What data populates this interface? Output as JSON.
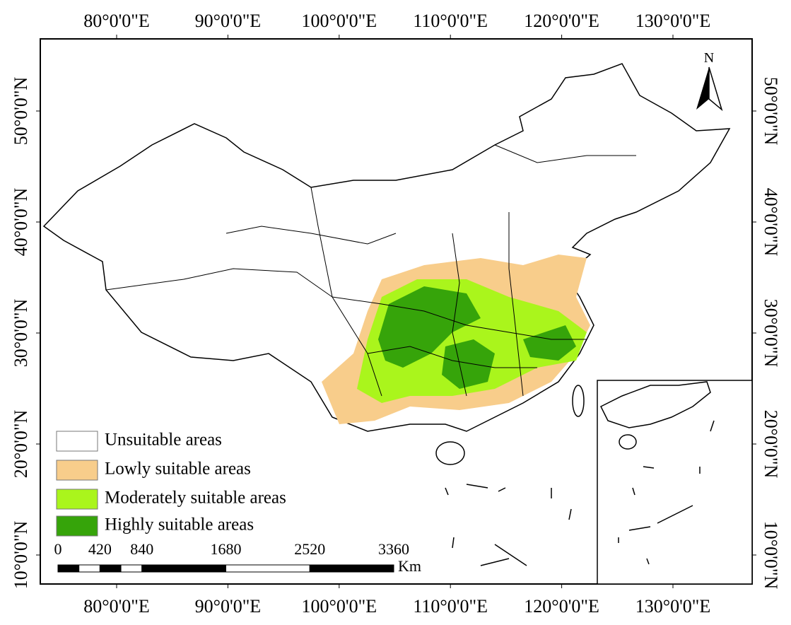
{
  "map": {
    "longitude_labels": [
      {
        "value": 80,
        "label": "80°0'0\"E"
      },
      {
        "value": 90,
        "label": "90°0'0\"E"
      },
      {
        "value": 100,
        "label": "100°0'0\"E"
      },
      {
        "value": 110,
        "label": "110°0'0\"E"
      },
      {
        "value": 120,
        "label": "120°0'0\"E"
      },
      {
        "value": 130,
        "label": "130°0'0\"E"
      }
    ],
    "latitude_labels": [
      {
        "value": 50,
        "label": "50°0'0\"N"
      },
      {
        "value": 40,
        "label": "40°0'0\"N"
      },
      {
        "value": 30,
        "label": "30°0'0\"N"
      },
      {
        "value": 20,
        "label": "20°0'0\"N"
      },
      {
        "value": 10,
        "label": "10°0'0\"N"
      }
    ],
    "north_arrow": "N",
    "legend": [
      {
        "label": "Unsuitable areas",
        "color": "#ffffff"
      },
      {
        "label": "Lowly suitable areas",
        "color": "#f8cd8b"
      },
      {
        "label": "Moderately suitable areas",
        "color": "#aaf51c"
      },
      {
        "label": "Highly suitable areas",
        "color": "#36a40a"
      }
    ],
    "scale_bar": {
      "labels": [
        0,
        420,
        840,
        1680,
        2520,
        3360
      ],
      "unit": "Km"
    }
  }
}
